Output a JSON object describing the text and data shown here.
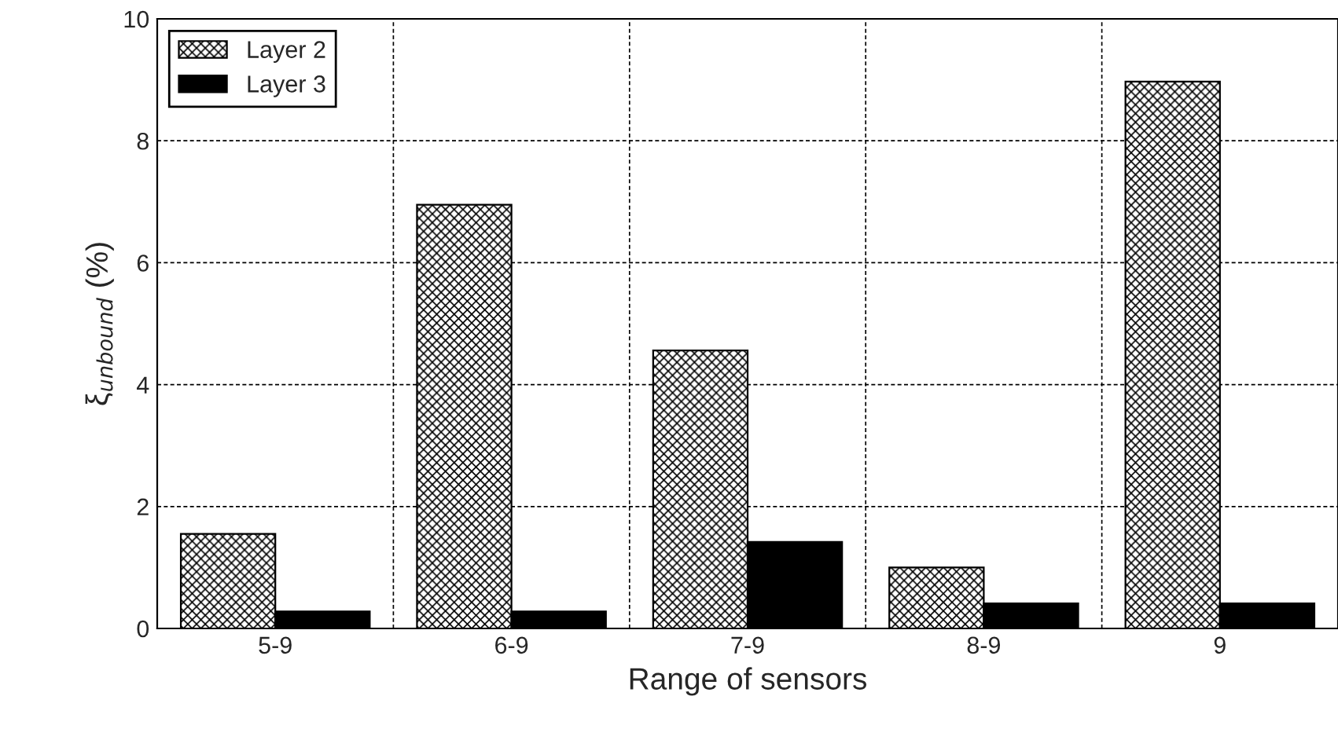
{
  "chart_data": {
    "type": "bar",
    "xlabel": "Range of sensors",
    "ylabel": "ξ$_{unbound}$ (%)",
    "categories": [
      "5-9",
      "6-9",
      "7-9",
      "8-9",
      "9"
    ],
    "series": [
      {
        "name": "Layer 2",
        "color": "#000000",
        "values": [
          1.55,
          6.95,
          4.56,
          1.0,
          8.97
        ]
      },
      {
        "name": "Layer 3",
        "color": "#000000",
        "values": [
          0.28,
          0.28,
          1.42,
          0.41,
          0.41
        ]
      }
    ],
    "ylim": [
      0,
      10
    ],
    "yticks": [
      0,
      2,
      4,
      6,
      8,
      10
    ],
    "grid": true,
    "legend": "top left"
  }
}
